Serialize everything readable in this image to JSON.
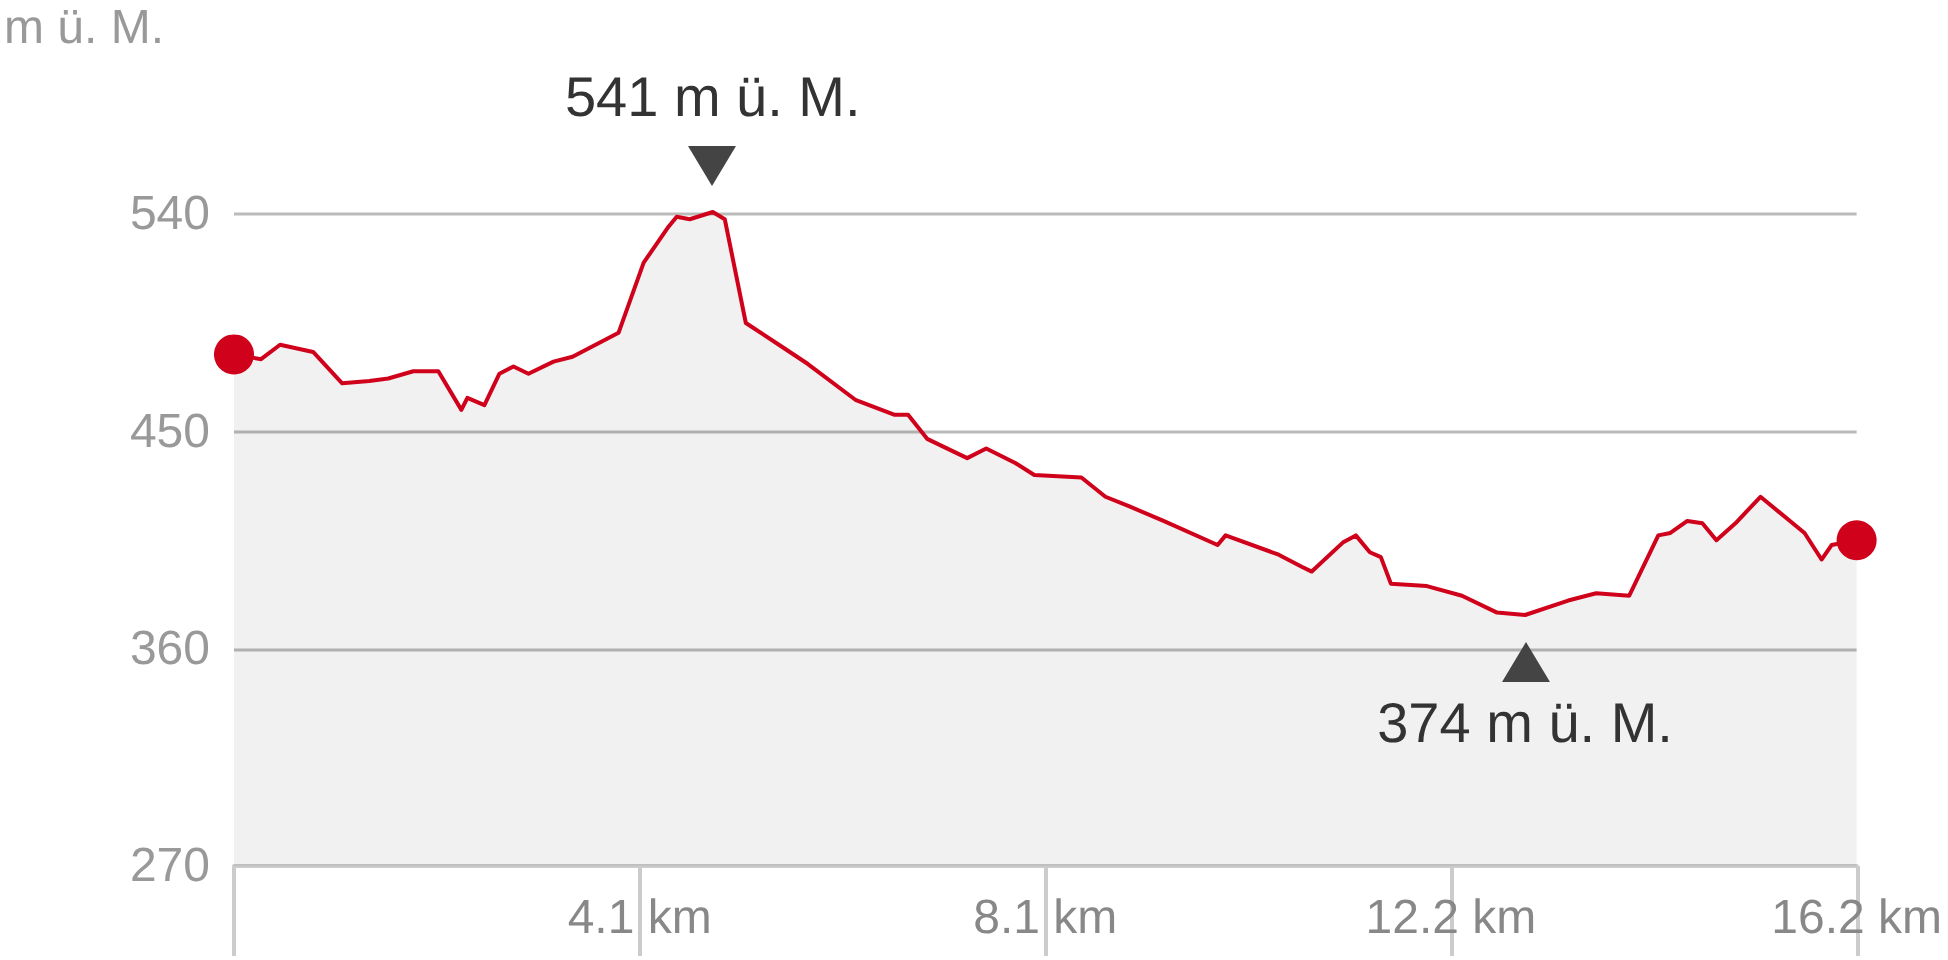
{
  "chart_data": {
    "type": "area",
    "ylabel": "m ü. M.",
    "x": [
      0,
      0.27,
      0.46,
      0.79,
      1.08,
      1.35,
      1.54,
      1.79,
      2.04,
      2.27,
      2.33,
      2.5,
      2.65,
      2.79,
      2.94,
      3.19,
      3.38,
      3.84,
      4.09,
      4.34,
      4.42,
      4.55,
      4.78,
      4.9,
      5.11,
      5.44,
      5.73,
      6.21,
      6.59,
      6.73,
      6.92,
      7.32,
      7.51,
      7.8,
      7.99,
      8.46,
      8.7,
      8.94,
      9.28,
      9.82,
      9.9,
      10.43,
      10.66,
      10.76,
      11.07,
      11.2,
      11.34,
      11.45,
      11.55,
      11.91,
      12.26,
      12.61,
      12.89,
      13.32,
      13.6,
      13.93,
      14.22,
      14.34,
      14.51,
      14.66,
      14.8,
      14.99,
      15.24,
      15.68,
      15.85,
      15.95,
      16.2
    ],
    "series": [
      {
        "color": "#d0021b",
        "values": [
          482,
          480,
          486,
          483,
          470,
          471,
          472,
          475,
          475,
          459,
          464,
          461,
          474,
          477,
          474,
          479,
          481,
          491,
          520,
          535,
          539,
          538,
          541,
          538,
          495,
          486,
          478,
          463,
          457,
          457,
          447,
          439,
          443,
          437,
          432,
          431,
          423,
          419,
          413,
          403,
          407,
          399,
          394,
          392,
          404,
          407,
          400,
          398,
          387,
          386,
          382,
          375,
          374,
          380,
          383,
          382,
          407,
          408,
          413,
          412,
          405,
          412,
          423,
          408,
          397,
          403,
          405
        ]
      }
    ],
    "xlim": [
      0,
      16.2
    ],
    "xticks": [
      {
        "value": 4.05,
        "label": "4.1 km"
      },
      {
        "value": 8.1,
        "label": "8.1 km"
      },
      {
        "value": 12.15,
        "label": "12.2 km"
      },
      {
        "value": 16.2,
        "label": "16.2 km"
      }
    ],
    "ylim": [
      270,
      541
    ],
    "yticks": [
      270,
      360,
      450,
      540
    ],
    "grid": "y",
    "annotations": [
      {
        "text": "541 m ü. M.",
        "x": 4.78,
        "y": 541
      },
      {
        "text": "374 m ü. M.",
        "x": 12.89,
        "y": 374
      }
    ]
  }
}
